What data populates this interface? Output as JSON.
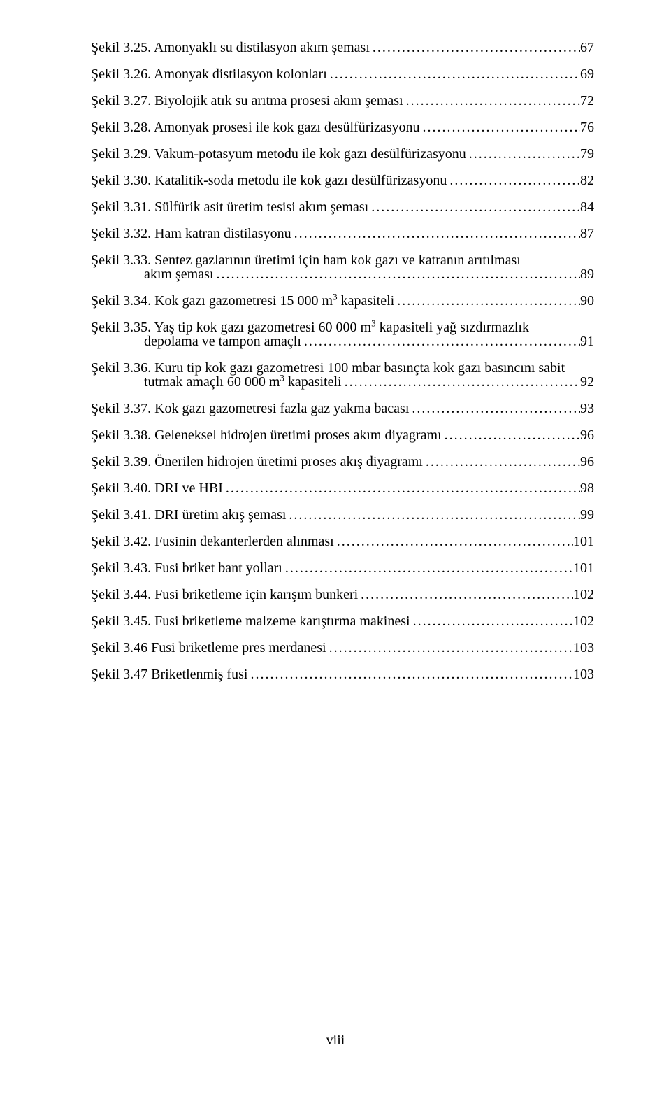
{
  "leader_glyph": "................................................................................................................................................................",
  "page_label": "viii",
  "entries": [
    {
      "lines": [
        "Şekil 3.25. Amonyaklı su distilasyon akım şeması"
      ],
      "page": "67"
    },
    {
      "lines": [
        "Şekil 3.26. Amonyak distilasyon kolonları"
      ],
      "page": "69"
    },
    {
      "lines": [
        "Şekil 3.27. Biyolojik atık su arıtma prosesi akım şeması"
      ],
      "page": "72"
    },
    {
      "lines": [
        "Şekil 3.28. Amonyak prosesi ile kok gazı desülfürizasyonu"
      ],
      "page": "76"
    },
    {
      "lines": [
        "Şekil 3.29. Vakum-potasyum metodu ile kok gazı desülfürizasyonu"
      ],
      "page": "79"
    },
    {
      "lines": [
        "Şekil 3.30. Katalitik-soda metodu ile kok gazı desülfürizasyonu"
      ],
      "page": "82"
    },
    {
      "lines": [
        "Şekil 3.31. Sülfürik asit üretim tesisi akım şeması"
      ],
      "page": "84"
    },
    {
      "lines": [
        "Şekil 3.32. Ham katran distilasyonu"
      ],
      "page": "87"
    },
    {
      "lines": [
        "Şekil 3.33. Sentez gazlarının üretimi için ham kok gazı ve katranın arıtılması",
        "akım şeması"
      ],
      "page": "89"
    },
    {
      "lines": [
        "Şekil 3.34. Kok gazı gazometresi 15 000 m³ kapasiteli"
      ],
      "page": "90",
      "sup_m3_in": 0
    },
    {
      "lines": [
        "Şekil 3.35. Yaş tip kok gazı gazometresi 60 000 m³ kapasiteli yağ sızdırmazlık",
        "depolama ve tampon amaçlı"
      ],
      "page": "91",
      "sup_m3_in": 0
    },
    {
      "lines": [
        "Şekil 3.36. Kuru tip kok gazı gazometresi 100 mbar basınçta kok gazı basıncını sabit",
        "tutmak amaçlı 60 000 m³ kapasiteli"
      ],
      "page": "92",
      "sup_m3_in": 1
    },
    {
      "lines": [
        "Şekil 3.37. Kok gazı gazometresi fazla gaz yakma bacası"
      ],
      "page": "93"
    },
    {
      "lines": [
        "Şekil 3.38. Geleneksel hidrojen üretimi proses akım diyagramı"
      ],
      "page": "96"
    },
    {
      "lines": [
        "Şekil 3.39. Önerilen hidrojen üretimi proses akış diyagramı"
      ],
      "page": "96"
    },
    {
      "lines": [
        "Şekil 3.40. DRI ve HBI"
      ],
      "page": "98"
    },
    {
      "lines": [
        "Şekil 3.41. DRI üretim akış şeması"
      ],
      "page": "99"
    },
    {
      "lines": [
        "Şekil 3.42. Fusinin dekanterlerden alınması"
      ],
      "page": "101"
    },
    {
      "lines": [
        "Şekil 3.43. Fusi briket bant yolları"
      ],
      "page": "101"
    },
    {
      "lines": [
        "Şekil 3.44. Fusi briketleme için karışım bunkeri"
      ],
      "page": "102"
    },
    {
      "lines": [
        "Şekil 3.45. Fusi briketleme malzeme  karıştırma makinesi"
      ],
      "page": "102"
    },
    {
      "lines": [
        "Şekil 3.46 Fusi briketleme pres merdanesi"
      ],
      "page": "103"
    },
    {
      "lines": [
        "Şekil 3.47 Briketlenmiş fusi"
      ],
      "page": "103"
    }
  ]
}
